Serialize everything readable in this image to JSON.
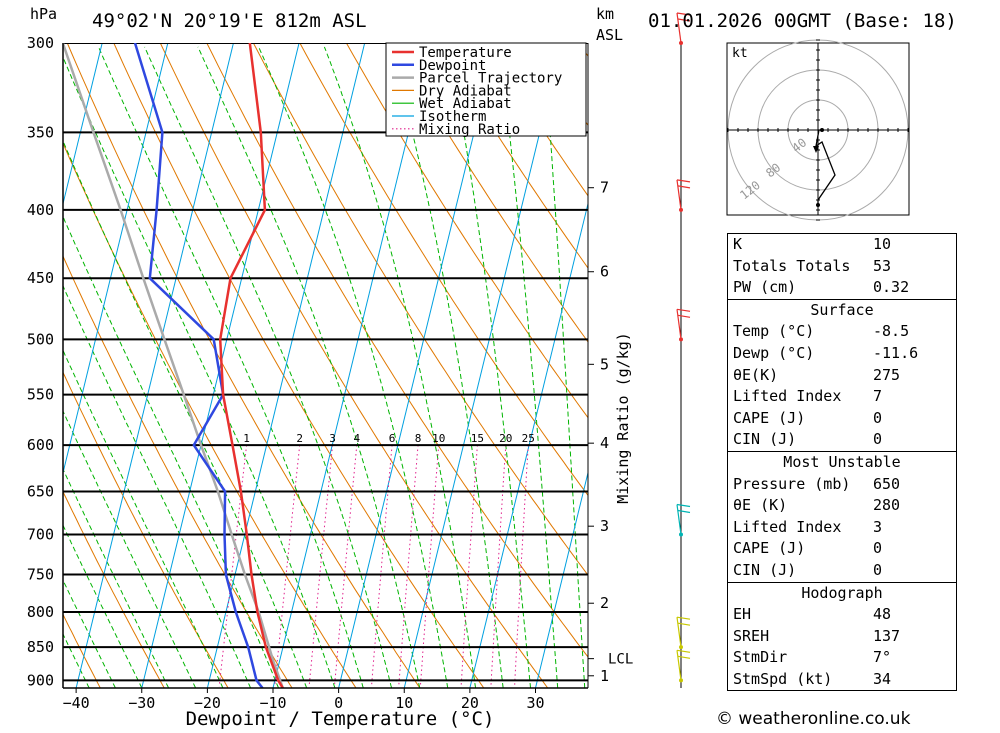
{
  "header": {
    "location": "49°02'N 20°19'E 812m ASL",
    "datetime": "01.01.2026 00GMT (Base: 18)",
    "hpa_label": "hPa",
    "km_label": "km",
    "asl_label": "ASL"
  },
  "chart_data": {
    "type": "skew-t",
    "xlabel": "Dewpoint / Temperature (°C)",
    "mixing_ratio_axis_label": "Mixing Ratio (g/kg)",
    "pressure_ticks": [
      300,
      350,
      400,
      450,
      500,
      550,
      600,
      650,
      700,
      750,
      800,
      850,
      900
    ],
    "temp_ticks": [
      -40,
      -30,
      -20,
      -10,
      0,
      10,
      20,
      30
    ],
    "temp_range": [
      -42,
      38
    ],
    "pressure_range": [
      300,
      912
    ],
    "km_ticks": [
      {
        "label": "7",
        "p": 385
      },
      {
        "label": "6",
        "p": 445
      },
      {
        "label": "5",
        "p": 522
      },
      {
        "label": "4",
        "p": 598
      },
      {
        "label": "3",
        "p": 690
      },
      {
        "label": "2",
        "p": 788
      },
      {
        "label": "1",
        "p": 893
      }
    ],
    "lcl": {
      "label": "LCL",
      "p": 867
    },
    "mixing_ratio_labels": [
      "1",
      "2",
      "3",
      "4",
      "6",
      "8",
      "10",
      "15",
      "20",
      "25"
    ],
    "mixing_ratio_values": [
      1,
      2,
      3,
      4,
      6,
      8,
      10,
      15,
      20,
      25
    ],
    "legend": [
      {
        "name": "Temperature",
        "color": "#e8312f",
        "style": "solid"
      },
      {
        "name": "Dewpoint",
        "color": "#2f48e0",
        "style": "solid"
      },
      {
        "name": "Parcel Trajectory",
        "color": "#aaaaaa",
        "style": "solid"
      },
      {
        "name": "Dry Adiabat",
        "color": "#e07800",
        "style": "solid"
      },
      {
        "name": "Wet Adiabat",
        "color": "#00b400",
        "style": "solid"
      },
      {
        "name": "Isotherm",
        "color": "#00a0e0",
        "style": "solid"
      },
      {
        "name": "Mixing Ratio",
        "color": "#e0208c",
        "style": "dotted"
      }
    ],
    "series": [
      {
        "name": "Temperature",
        "p": [
          912,
          900,
          850,
          800,
          750,
          700,
          650,
          600,
          550,
          500,
          450,
          400,
          350,
          300
        ],
        "t": [
          -8.5,
          -9.5,
          -12.6,
          -15.2,
          -17.5,
          -19.7,
          -22.2,
          -25.2,
          -28.5,
          -31.0,
          -31.7,
          -29.0,
          -32.5,
          -37.5
        ]
      },
      {
        "name": "Dewpoint",
        "p": [
          912,
          900,
          850,
          800,
          750,
          700,
          650,
          600,
          550,
          500,
          450,
          400,
          350,
          300
        ],
        "t": [
          -11.6,
          -12.8,
          -15.3,
          -18.5,
          -21.4,
          -23.1,
          -24.6,
          -31.1,
          -28.5,
          -32.0,
          -44.0,
          -45.5,
          -47.5,
          -55.0
        ]
      },
      {
        "name": "Parcel Trajectory",
        "p": [
          912,
          870,
          800,
          750,
          700,
          650,
          600,
          550,
          500,
          450,
          400,
          350,
          300
        ],
        "t": [
          -8.5,
          -11.0,
          -15.0,
          -18.5,
          -22.0,
          -25.7,
          -30.0,
          -34.5,
          -39.5,
          -45.0,
          -51.0,
          -58.0,
          -66.0
        ]
      }
    ],
    "wind_barbs": [
      {
        "p": 300,
        "color": "#e8312f"
      },
      {
        "p": 400,
        "color": "#e8312f"
      },
      {
        "p": 500,
        "color": "#e8312f"
      },
      {
        "p": 700,
        "color": "#00b4b4"
      },
      {
        "p": 850,
        "color": "#c8c800"
      },
      {
        "p": 900,
        "color": "#c8c800"
      }
    ]
  },
  "hodograph": {
    "unit": "kt",
    "ring_labels": [
      "40",
      "80",
      "120"
    ]
  },
  "indices": {
    "rows1": [
      {
        "k": "K",
        "v": "10"
      },
      {
        "k": "Totals Totals",
        "v": "53"
      },
      {
        "k": "PW (cm)",
        "v": "0.32"
      }
    ],
    "surface_title": "Surface",
    "surface": [
      {
        "k": "Temp (°C)",
        "v": "-8.5"
      },
      {
        "k": "Dewp (°C)",
        "v": "-11.6"
      },
      {
        "k": "θE(K)",
        "v": "275"
      },
      {
        "k": "Lifted Index",
        "v": "7"
      },
      {
        "k": "CAPE (J)",
        "v": "0"
      },
      {
        "k": "CIN (J)",
        "v": "0"
      }
    ],
    "mu_title": "Most Unstable",
    "mu": [
      {
        "k": "Pressure (mb)",
        "v": "650"
      },
      {
        "k": "θE (K)",
        "v": "280"
      },
      {
        "k": "Lifted Index",
        "v": "3"
      },
      {
        "k": "CAPE (J)",
        "v": "0"
      },
      {
        "k": "CIN (J)",
        "v": "0"
      }
    ],
    "hodo_title": "Hodograph",
    "hodo": [
      {
        "k": "EH",
        "v": "48"
      },
      {
        "k": "SREH",
        "v": "137"
      },
      {
        "k": "StmDir",
        "v": "7°"
      },
      {
        "k": "StmSpd (kt)",
        "v": "34"
      }
    ]
  },
  "footer": {
    "copyright": "© weatheronline.co.uk"
  }
}
